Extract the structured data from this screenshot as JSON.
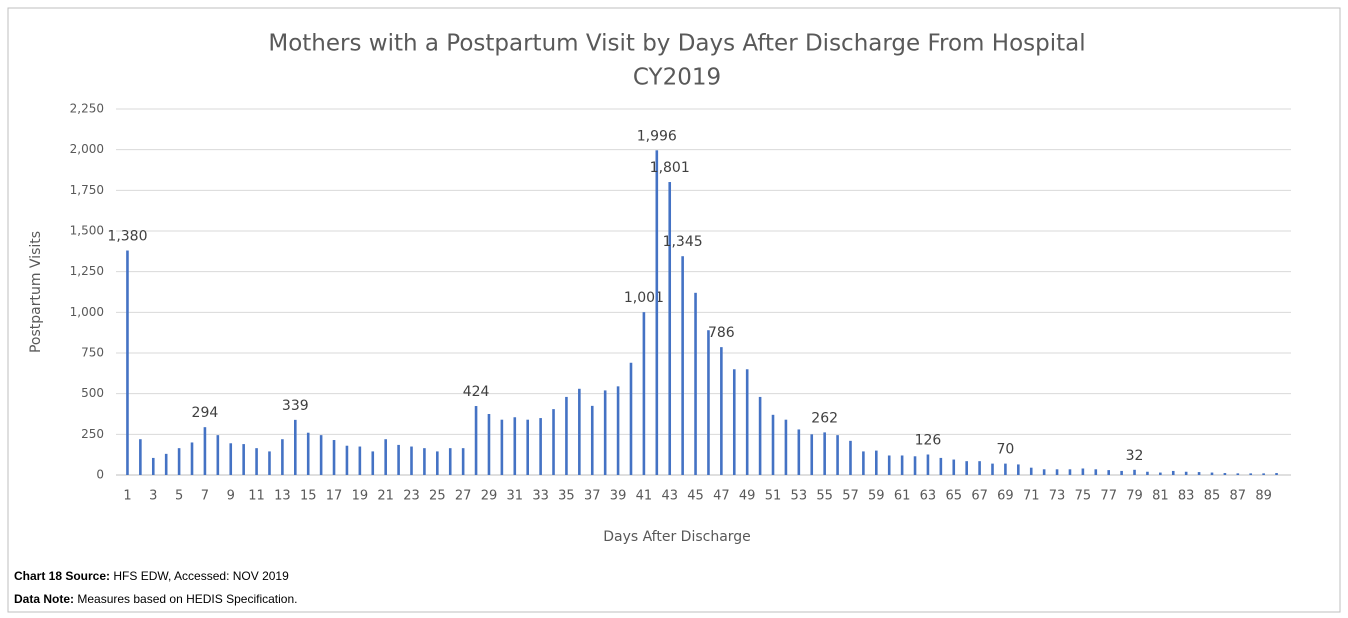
{
  "chart_data": {
    "type": "bar",
    "title": "Mothers with a Postpartum Visit by Days After Discharge From Hospital",
    "subtitle": "CY2019",
    "x_label": "Days After Discharge",
    "y_label": "Postpartum Visits",
    "categories": [
      "1",
      null,
      "3",
      null,
      "5",
      null,
      "7",
      null,
      "9",
      null,
      "11",
      null,
      "13",
      null,
      "15",
      null,
      "17",
      null,
      "19",
      null,
      "21",
      null,
      "23",
      null,
      "25",
      null,
      "27",
      null,
      "29",
      null,
      "31",
      null,
      "33",
      null,
      "35",
      null,
      "37",
      null,
      "39",
      null,
      "41",
      null,
      "43",
      null,
      "45",
      null,
      "47",
      null,
      "49",
      null,
      "51",
      null,
      "53",
      null,
      "55",
      null,
      "57",
      null,
      "59",
      null,
      "61",
      null,
      "63",
      null,
      "65",
      null,
      "67",
      null,
      "69",
      null,
      "71",
      null,
      "73",
      null,
      "75",
      null,
      "77",
      null,
      "79",
      null,
      "81",
      null,
      "83",
      null,
      "85",
      null,
      "87",
      null,
      "89",
      null
    ],
    "values": [
      1380,
      220,
      105,
      130,
      165,
      200,
      294,
      245,
      195,
      190,
      165,
      145,
      220,
      339,
      260,
      245,
      215,
      180,
      175,
      145,
      220,
      185,
      175,
      165,
      145,
      165,
      165,
      424,
      375,
      340,
      355,
      340,
      350,
      405,
      480,
      530,
      425,
      520,
      545,
      690,
      1001,
      1996,
      1801,
      1345,
      1120,
      890,
      786,
      650,
      650,
      480,
      370,
      340,
      280,
      250,
      262,
      245,
      210,
      145,
      150,
      120,
      120,
      115,
      126,
      105,
      95,
      85,
      85,
      70,
      70,
      65,
      45,
      35,
      35,
      35,
      40,
      35,
      30,
      25,
      32,
      20,
      15,
      25,
      20,
      18,
      15,
      12,
      10,
      10,
      10,
      12
    ],
    "value_labels": [
      "1,380",
      null,
      null,
      null,
      null,
      null,
      "294",
      null,
      null,
      null,
      null,
      null,
      null,
      "339",
      null,
      null,
      null,
      null,
      null,
      null,
      null,
      null,
      null,
      null,
      null,
      null,
      null,
      "424",
      null,
      null,
      null,
      null,
      null,
      null,
      null,
      null,
      null,
      null,
      null,
      null,
      "1,001",
      "1,996",
      "1,801",
      "1,345",
      null,
      null,
      "786",
      null,
      null,
      null,
      null,
      null,
      null,
      null,
      "262",
      null,
      null,
      null,
      null,
      null,
      null,
      null,
      "126",
      null,
      null,
      null,
      null,
      null,
      "70",
      null,
      null,
      null,
      null,
      null,
      null,
      null,
      null,
      null,
      "32",
      null,
      null,
      null,
      null,
      null,
      null,
      null,
      null,
      null,
      null,
      null
    ],
    "color": "#4472c4",
    "ylim": [
      0,
      2250
    ],
    "yticks": [
      0,
      250,
      500,
      750,
      {
        "value": 1000,
        "label": "1,000"
      },
      {
        "value": 1250,
        "label": "1,250"
      },
      {
        "value": 1500,
        "label": "1,500"
      },
      {
        "value": 1750,
        "label": "1,750"
      },
      {
        "value": 2000,
        "label": "2,000"
      },
      {
        "value": 2250,
        "label": "2,250"
      }
    ],
    "grid": true
  },
  "footer": {
    "source_label": "Chart 18 Source:",
    "source": "HFS EDW, Accessed: NOV 2019",
    "note_label": "Data Note:",
    "note": "Measures based on HEDIS Specification."
  }
}
